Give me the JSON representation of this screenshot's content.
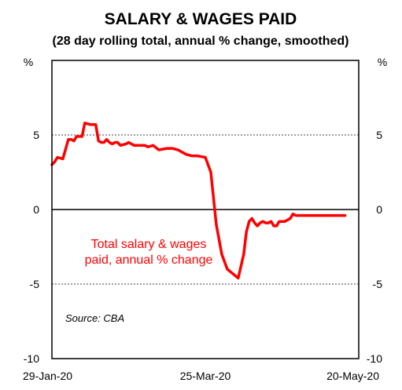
{
  "chart_data": {
    "type": "line",
    "title": "SALARY & WAGES PAID",
    "subtitle": "(28 day rolling total, annual % change, smoothed)",
    "y_unit_left": "%",
    "y_unit_right": "%",
    "ylim": [
      -10,
      10
    ],
    "yticks": [
      -10,
      -5,
      0,
      5
    ],
    "ytick_labels": [
      "-10",
      "-5",
      "0",
      "5"
    ],
    "xlim": [
      "2020-01-29",
      "2020-05-20"
    ],
    "xticks": [
      "2020-01-29",
      "2020-03-25",
      "2020-05-20"
    ],
    "xtick_labels": [
      "29-Jan-20",
      "25-Mar-20",
      "20-May-20"
    ],
    "grid": "dotted lines at 5 and -5; solid line at 0",
    "series": [
      {
        "name": "Total salary & wages paid, annual % change",
        "color": "#ff0000",
        "x": [
          "2020-01-29",
          "2020-01-30",
          "2020-01-31",
          "2020-02-02",
          "2020-02-04",
          "2020-02-05",
          "2020-02-06",
          "2020-02-07",
          "2020-02-09",
          "2020-02-10",
          "2020-02-12",
          "2020-02-13",
          "2020-02-14",
          "2020-02-15",
          "2020-02-16",
          "2020-02-17",
          "2020-02-18",
          "2020-02-19",
          "2020-02-20",
          "2020-02-21",
          "2020-02-22",
          "2020-02-23",
          "2020-02-25",
          "2020-02-26",
          "2020-02-28",
          "2020-03-01",
          "2020-03-03",
          "2020-03-04",
          "2020-03-06",
          "2020-03-08",
          "2020-03-11",
          "2020-03-13",
          "2020-03-15",
          "2020-03-17",
          "2020-03-18",
          "2020-03-20",
          "2020-03-22",
          "2020-03-25",
          "2020-03-27",
          "2020-03-29",
          "2020-03-31",
          "2020-04-02",
          "2020-04-04",
          "2020-04-06",
          "2020-04-08",
          "2020-04-09",
          "2020-04-10",
          "2020-04-11",
          "2020-04-12",
          "2020-04-13",
          "2020-04-14",
          "2020-04-15",
          "2020-04-16",
          "2020-04-17",
          "2020-04-18",
          "2020-04-19",
          "2020-04-20",
          "2020-04-21",
          "2020-04-22",
          "2020-04-23",
          "2020-04-24",
          "2020-04-25",
          "2020-04-26",
          "2020-04-27",
          "2020-04-28",
          "2020-04-29",
          "2020-04-30",
          "2020-05-01",
          "2020-05-02",
          "2020-05-04",
          "2020-05-05",
          "2020-05-06",
          "2020-05-08",
          "2020-05-10",
          "2020-05-12",
          "2020-05-13",
          "2020-05-14",
          "2020-05-15"
        ],
        "values": [
          3.0,
          3.2,
          3.5,
          3.4,
          4.7,
          4.7,
          4.6,
          4.9,
          4.9,
          5.8,
          5.7,
          5.7,
          5.7,
          4.6,
          4.5,
          4.5,
          4.7,
          4.5,
          4.4,
          4.5,
          4.5,
          4.3,
          4.4,
          4.5,
          4.3,
          4.3,
          4.3,
          4.2,
          4.3,
          4.0,
          4.1,
          4.1,
          4.0,
          3.8,
          3.7,
          3.6,
          3.6,
          3.5,
          2.5,
          -1.0,
          -3.0,
          -4.0,
          -4.3,
          -4.6,
          -3.0,
          -1.5,
          -0.8,
          -0.6,
          -0.9,
          -1.1,
          -0.9,
          -0.8,
          -0.9,
          -0.9,
          -0.8,
          -1.1,
          -1.1,
          -0.8,
          -0.8,
          -0.8,
          -0.7,
          -0.6,
          -0.3,
          -0.4,
          -0.4,
          -0.4,
          -0.4,
          -0.4,
          -0.4,
          -0.4,
          -0.4,
          -0.4,
          -0.4,
          -0.4,
          -0.4,
          -0.4,
          -0.4,
          -0.4
        ]
      }
    ],
    "annotation": [
      "Total salary & wages",
      "paid, annual % change"
    ],
    "source": "Source: CBA"
  }
}
